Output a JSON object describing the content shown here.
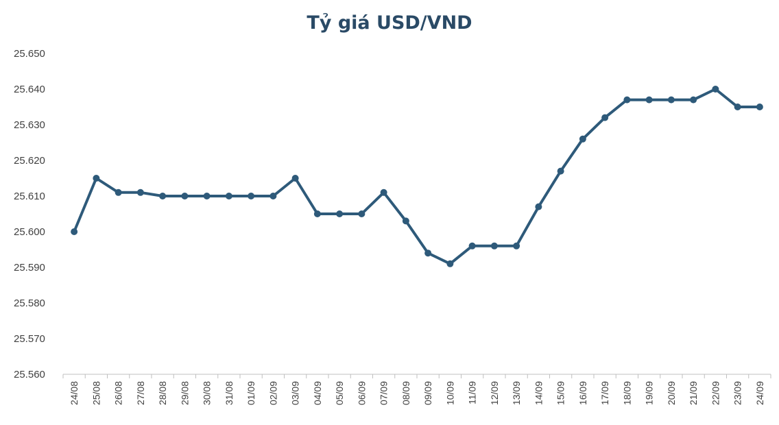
{
  "chart_data": {
    "type": "line",
    "title": "Tỷ giá USD/VND",
    "xlabel": "",
    "ylabel": "",
    "ylim": [
      25560,
      25650
    ],
    "y_tick_values": [
      25560,
      25570,
      25580,
      25590,
      25600,
      25610,
      25620,
      25630,
      25640,
      25650
    ],
    "y_tick_labels": [
      "25.560",
      "25.570",
      "25.580",
      "25.590",
      "25.600",
      "25.610",
      "25.620",
      "25.630",
      "25.640",
      "25.650"
    ],
    "grid": false,
    "legend": "none",
    "line_color": "#2e5a7a",
    "categories": [
      "24/08",
      "25/08",
      "26/08",
      "27/08",
      "28/08",
      "29/08",
      "30/08",
      "31/08",
      "01/09",
      "02/09",
      "03/09",
      "04/09",
      "05/09",
      "06/09",
      "07/09",
      "08/09",
      "09/09",
      "10/09",
      "11/09",
      "12/09",
      "13/09",
      "14/09",
      "15/09",
      "16/09",
      "17/09",
      "18/09",
      "19/09",
      "20/09",
      "21/09",
      "22/09",
      "23/09",
      "24/09"
    ],
    "series": [
      {
        "values": [
          25600,
          25615,
          25611,
          25611,
          25610,
          25610,
          25610,
          25610,
          25610,
          25610,
          25615,
          25605,
          25605,
          25605,
          25611,
          25603,
          25594,
          25591,
          25596,
          25596,
          25596,
          25607,
          25617,
          25626,
          25632,
          25637,
          25637,
          25637,
          25637,
          25640,
          25635,
          25635
        ]
      }
    ]
  }
}
